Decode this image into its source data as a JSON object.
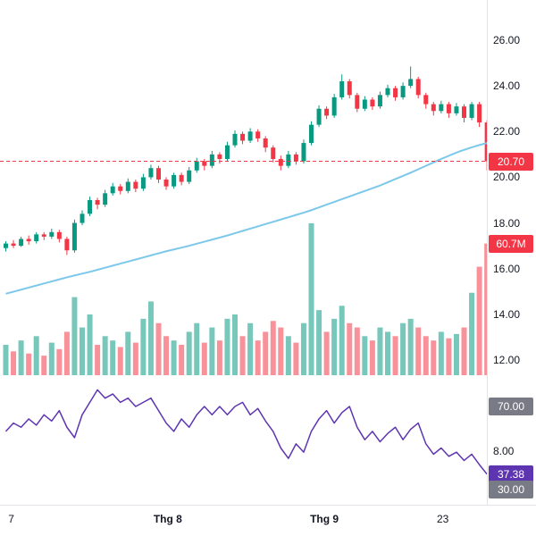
{
  "meta": {
    "background": "#ffffff",
    "text_color": "#131722",
    "axis_line_color": "#e0e3eb"
  },
  "chart_data": {
    "type": "candlestick",
    "panes": [
      "price with volume overlay and moving average",
      "rsi oscillator"
    ],
    "title": "",
    "x_axis": {
      "ticks": [
        {
          "label": "7",
          "i": 1,
          "major": false
        },
        {
          "label": "Thg 8",
          "i": 21.5,
          "major": true
        },
        {
          "label": "Thg 9",
          "i": 42,
          "major": true
        },
        {
          "label": "23",
          "i": 57.5,
          "major": false
        }
      ]
    },
    "y_axis": {
      "price_ticks": [
        {
          "label": "26.00",
          "value": 26
        },
        {
          "label": "24.00",
          "value": 24
        },
        {
          "label": "22.00",
          "value": 22
        },
        {
          "label": "20.00",
          "value": 20
        },
        {
          "label": "18.00",
          "value": 18
        },
        {
          "label": "16.00",
          "value": 16
        },
        {
          "label": "14.00",
          "value": 14
        },
        {
          "label": "12.00",
          "value": 12
        },
        {
          "label": "8.00",
          "value": 8
        }
      ]
    },
    "ranges": {
      "price": [
        11.5,
        26.5
      ],
      "rsi": [
        25,
        85
      ],
      "volume_max": 70
    },
    "price_line": {
      "value": 20.7,
      "color": "#f23645",
      "style": "dashed"
    },
    "colors": {
      "up": "#089981",
      "down": "#f23645",
      "vol_up": "rgba(8,153,129,0.55)",
      "vol_down": "rgba(242,54,69,0.55)",
      "ma": "#7cc8ea",
      "rsi": "#5e35b1",
      "band_badge": "#787b86"
    },
    "badges": {
      "last_price": {
        "label": "20.70",
        "value": 20.7,
        "bg": "#f23645"
      },
      "last_volume": {
        "label": "60.7M",
        "value": 60.7,
        "bg": "#f23645"
      },
      "rsi_upper": {
        "label": "70.00",
        "value": 70,
        "bg": "#787b86"
      },
      "rsi_value": {
        "label": "37.38",
        "value": 37.38,
        "bg": "#5e35b1"
      },
      "rsi_lower": {
        "label": "30.00",
        "value": 30,
        "bg": "#787b86"
      }
    },
    "candles": [
      [
        16.9,
        17.2,
        16.75,
        17.1
      ],
      [
        17.1,
        17.25,
        16.9,
        17.0
      ],
      [
        17.0,
        17.4,
        16.95,
        17.3
      ],
      [
        17.3,
        17.45,
        17.05,
        17.2
      ],
      [
        17.2,
        17.6,
        17.1,
        17.5
      ],
      [
        17.5,
        17.6,
        17.25,
        17.4
      ],
      [
        17.4,
        17.75,
        17.3,
        17.6
      ],
      [
        17.6,
        17.7,
        17.15,
        17.3
      ],
      [
        17.3,
        17.4,
        16.6,
        16.8
      ],
      [
        16.8,
        18.15,
        16.7,
        18.0
      ],
      [
        18.0,
        18.55,
        17.9,
        18.4
      ],
      [
        18.4,
        19.15,
        18.3,
        19.0
      ],
      [
        19.0,
        19.1,
        18.6,
        18.8
      ],
      [
        18.8,
        19.45,
        18.7,
        19.3
      ],
      [
        19.3,
        19.75,
        19.2,
        19.6
      ],
      [
        19.6,
        19.7,
        19.25,
        19.4
      ],
      [
        19.4,
        19.95,
        19.3,
        19.8
      ],
      [
        19.8,
        19.9,
        19.35,
        19.5
      ],
      [
        19.5,
        20.15,
        19.4,
        20.0
      ],
      [
        20.0,
        20.55,
        19.9,
        20.4
      ],
      [
        20.4,
        20.5,
        19.75,
        19.9
      ],
      [
        19.9,
        20.0,
        19.45,
        19.6
      ],
      [
        19.6,
        20.2,
        19.5,
        20.1
      ],
      [
        20.1,
        20.2,
        19.65,
        19.8
      ],
      [
        19.8,
        20.45,
        19.7,
        20.3
      ],
      [
        20.3,
        20.85,
        20.2,
        20.7
      ],
      [
        20.7,
        20.8,
        20.3,
        20.5
      ],
      [
        20.5,
        21.15,
        20.4,
        21.0
      ],
      [
        21.0,
        21.1,
        20.6,
        20.8
      ],
      [
        20.8,
        21.55,
        20.7,
        21.4
      ],
      [
        21.4,
        22.05,
        21.3,
        21.9
      ],
      [
        21.9,
        22.0,
        21.45,
        21.6
      ],
      [
        21.6,
        22.15,
        21.5,
        22.0
      ],
      [
        22.0,
        22.1,
        21.55,
        21.7
      ],
      [
        21.7,
        21.8,
        21.1,
        21.3
      ],
      [
        21.3,
        21.4,
        20.65,
        20.8
      ],
      [
        20.8,
        20.95,
        20.3,
        20.5
      ],
      [
        20.5,
        21.15,
        20.4,
        21.0
      ],
      [
        21.0,
        21.1,
        20.55,
        20.7
      ],
      [
        20.7,
        21.65,
        20.6,
        21.5
      ],
      [
        21.5,
        22.45,
        21.4,
        22.3
      ],
      [
        22.3,
        23.15,
        22.2,
        23.0
      ],
      [
        23.0,
        23.1,
        22.55,
        22.7
      ],
      [
        22.7,
        23.65,
        22.6,
        23.5
      ],
      [
        23.5,
        24.5,
        23.4,
        24.2
      ],
      [
        24.2,
        24.3,
        23.45,
        23.6
      ],
      [
        23.6,
        23.7,
        22.85,
        23.0
      ],
      [
        23.0,
        23.55,
        22.9,
        23.4
      ],
      [
        23.4,
        23.5,
        22.95,
        23.1
      ],
      [
        23.1,
        23.75,
        23.0,
        23.6
      ],
      [
        23.6,
        24.05,
        23.5,
        23.9
      ],
      [
        23.9,
        24.0,
        23.35,
        23.5
      ],
      [
        23.5,
        24.15,
        23.4,
        24.0
      ],
      [
        24.0,
        24.85,
        23.9,
        24.3
      ],
      [
        24.3,
        24.4,
        23.45,
        23.6
      ],
      [
        23.6,
        23.7,
        23.0,
        23.2
      ],
      [
        23.2,
        23.3,
        22.7,
        22.9
      ],
      [
        22.9,
        23.35,
        22.8,
        23.2
      ],
      [
        23.2,
        23.3,
        22.6,
        22.8
      ],
      [
        22.8,
        23.25,
        22.7,
        23.1
      ],
      [
        23.1,
        23.2,
        22.4,
        22.6
      ],
      [
        22.6,
        23.3,
        22.5,
        23.2
      ],
      [
        23.2,
        23.3,
        22.2,
        22.4
      ],
      [
        22.4,
        22.5,
        20.3,
        20.7
      ]
    ],
    "volumes": [
      14,
      11,
      16,
      10,
      18,
      9,
      15,
      12,
      20,
      36,
      22,
      28,
      14,
      18,
      16,
      13,
      20,
      15,
      26,
      34,
      24,
      18,
      16,
      14,
      20,
      24,
      15,
      22,
      16,
      26,
      28,
      18,
      24,
      16,
      20,
      25,
      22,
      18,
      15,
      24,
      70,
      30,
      20,
      26,
      32,
      24,
      22,
      18,
      16,
      22,
      20,
      18,
      24,
      26,
      22,
      18,
      16,
      20,
      17,
      19,
      22,
      38,
      50,
      60.7
    ],
    "ma": [
      14.9,
      14.99,
      15.08,
      15.17,
      15.26,
      15.35,
      15.44,
      15.53,
      15.62,
      15.7,
      15.78,
      15.86,
      15.95,
      16.04,
      16.13,
      16.22,
      16.31,
      16.4,
      16.49,
      16.58,
      16.67,
      16.76,
      16.84,
      16.92,
      17.0,
      17.09,
      17.18,
      17.27,
      17.36,
      17.45,
      17.55,
      17.65,
      17.75,
      17.85,
      17.95,
      18.05,
      18.15,
      18.25,
      18.35,
      18.45,
      18.56,
      18.68,
      18.8,
      18.92,
      19.04,
      19.16,
      19.28,
      19.4,
      19.52,
      19.64,
      19.78,
      19.92,
      20.06,
      20.2,
      20.35,
      20.5,
      20.65,
      20.8,
      20.94,
      21.08,
      21.2,
      21.31,
      21.41,
      21.5
    ],
    "rsi": [
      58,
      62,
      60,
      64,
      61,
      66,
      63,
      68,
      60,
      55,
      66,
      72,
      78,
      74,
      76,
      72,
      74,
      70,
      72,
      74,
      68,
      62,
      58,
      64,
      60,
      66,
      70,
      66,
      70,
      66,
      70,
      72,
      66,
      69,
      63,
      58,
      50,
      45,
      52,
      48,
      58,
      64,
      68,
      62,
      67,
      70,
      60,
      54,
      58,
      53,
      57,
      60,
      54,
      59,
      62,
      52,
      47,
      50,
      46,
      48,
      44,
      47,
      42,
      37.38
    ]
  }
}
